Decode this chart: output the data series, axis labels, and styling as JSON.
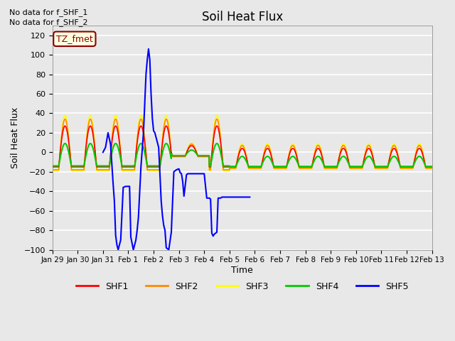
{
  "title": "Soil Heat Flux",
  "ylabel": "Soil Heat Flux",
  "xlabel": "Time",
  "ylim": [
    -100,
    130
  ],
  "yticks": [
    -100,
    -80,
    -60,
    -40,
    -20,
    0,
    20,
    40,
    60,
    80,
    100,
    120
  ],
  "background_color": "#e8e8e8",
  "no_data_text": [
    "No data for f_SHF_1",
    "No data for f_SHF_2"
  ],
  "legend_label_text": "TZ_fmet",
  "legend_entries": [
    "SHF1",
    "SHF2",
    "SHF3",
    "SHF4",
    "SHF5"
  ],
  "line_colors": [
    "#ff0000",
    "#ff8800",
    "#ffff00",
    "#00cc00",
    "#0000ff"
  ],
  "xtick_positions": [
    0,
    1,
    2,
    3,
    4,
    5,
    6,
    7,
    8,
    9,
    10,
    11,
    12,
    13,
    14,
    15
  ],
  "xtick_labels": [
    "Jan 29",
    "Jan 30",
    "Jan 31",
    "Feb 1",
    "Feb 2",
    "Feb 3",
    "Feb 4",
    "Feb 5",
    "Feb 6",
    "Feb 7",
    "Feb 8",
    "Feb 9",
    "Feb 10",
    "Feb 11",
    "Feb 12",
    "Feb 13"
  ],
  "shf5_x": [
    2.0,
    2.1,
    2.2,
    2.3,
    2.4,
    2.45,
    2.5,
    2.55,
    2.6,
    2.7,
    2.8,
    2.9,
    3.0,
    3.05,
    3.1,
    3.2,
    3.3,
    3.35,
    3.4,
    3.5,
    3.6,
    3.7,
    3.75,
    3.8,
    3.85,
    3.9,
    3.95,
    4.0,
    4.05,
    4.1,
    4.15,
    4.2,
    4.3,
    4.35,
    4.4,
    4.45,
    4.5,
    4.6,
    4.7,
    4.8,
    4.85,
    4.9,
    5.0,
    5.05,
    5.1,
    5.15,
    5.2,
    5.3,
    5.35,
    5.4,
    5.5,
    5.6,
    5.7,
    5.8,
    5.9,
    6.0,
    6.1,
    6.2,
    6.25,
    6.3,
    6.35,
    6.4,
    6.45,
    6.5,
    6.55,
    6.6,
    6.65,
    6.7,
    6.8,
    6.9,
    7.0,
    7.1,
    7.2,
    7.3,
    7.5,
    7.6,
    7.7,
    7.8
  ],
  "shf5_y": [
    0,
    5,
    20,
    8,
    -32,
    -50,
    -85,
    -95,
    -100,
    -90,
    -36,
    -35,
    -35,
    -35,
    -87,
    -100,
    -90,
    -80,
    -67,
    -15,
    20,
    80,
    95,
    106,
    95,
    60,
    35,
    22,
    20,
    15,
    10,
    5,
    -50,
    -65,
    -75,
    -80,
    -98,
    -100,
    -82,
    -20,
    -19,
    -18,
    -17,
    -21,
    -22,
    -30,
    -45,
    -23,
    -22,
    -22,
    -22,
    -22,
    -22,
    -22,
    -22,
    -22,
    -47,
    -47,
    -48,
    -83,
    -86,
    -84,
    -83,
    -82,
    -47,
    -47,
    -47,
    -46,
    -46,
    -46,
    -46,
    -46,
    -46,
    -46,
    -46,
    -46,
    -46,
    -46
  ]
}
